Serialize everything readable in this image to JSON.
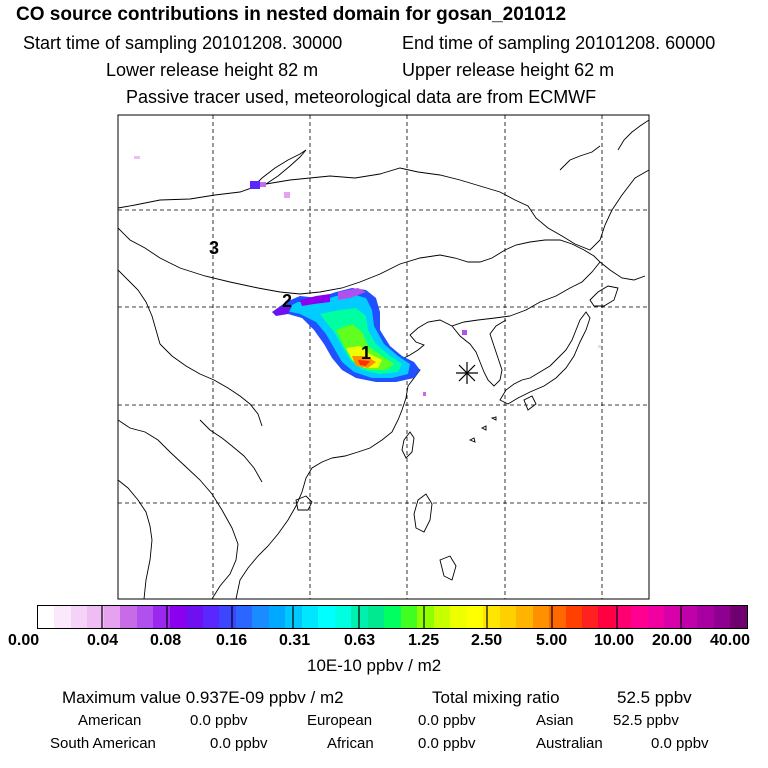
{
  "title": "CO  source contributions in nested domain for gosan_201012",
  "line2a": "Start time of sampling 20101208. 30000",
  "line2b": "End time of sampling 20101208. 60000",
  "line3a": "Lower release height   82 m",
  "line3b": "Upper release height   62 m",
  "line4": "Passive tracer used, meteorological data are from ECMWF",
  "map": {
    "labels": [
      "1",
      "2",
      "3"
    ],
    "receptor_icon": "asterisk-receptor-icon"
  },
  "colorbar": {
    "ticks": [
      "0.00",
      "0.04",
      "0.08",
      "0.16",
      "0.31",
      "0.63",
      "1.25",
      "2.50",
      "5.00",
      "10.00",
      "20.00",
      "40.00"
    ],
    "unit": "10E-10 ppbv / m2",
    "colors": [
      "#ffffff",
      "#fbe9fb",
      "#f5d2f7",
      "#efbcf3",
      "#e6a2ef",
      "#c86be6",
      "#b050ee",
      "#9b28ee",
      "#8b00ee",
      "#6f10f0",
      "#5a28ff",
      "#3c46ff",
      "#2a66ff",
      "#1a8cff",
      "#00a8ff",
      "#00c8ff",
      "#00e6ff",
      "#00ffff",
      "#00ffe0",
      "#00f0b0",
      "#00e890",
      "#00ff60",
      "#40ff20",
      "#90ff00",
      "#c8ff00",
      "#eeff00",
      "#ffff00",
      "#ffe600",
      "#ffd000",
      "#ffb400",
      "#ff9000",
      "#ff6800",
      "#ff4000",
      "#ff2020",
      "#ff0040",
      "#ff0070",
      "#ff0090",
      "#f000a0",
      "#d800a8",
      "#c000a8",
      "#a800a0",
      "#900090",
      "#700070"
    ]
  },
  "summary": {
    "max_label": "Maximum value  0.937E-09 ppbv / m2",
    "total_label": "Total mixing ratio",
    "total_value": "52.5 ppbv",
    "american_label": "American",
    "american_value": "0.0 ppbv",
    "european_label": "European",
    "european_value": "0.0 ppbv",
    "asian_label": "Asian",
    "asian_value": "52.5 ppbv",
    "south_american_label": "South American",
    "south_american_value": "0.0 ppbv",
    "african_label": "African",
    "african_value": "0.0 ppbv",
    "australian_label": "Australian",
    "australian_value": "0.0 ppbv"
  }
}
